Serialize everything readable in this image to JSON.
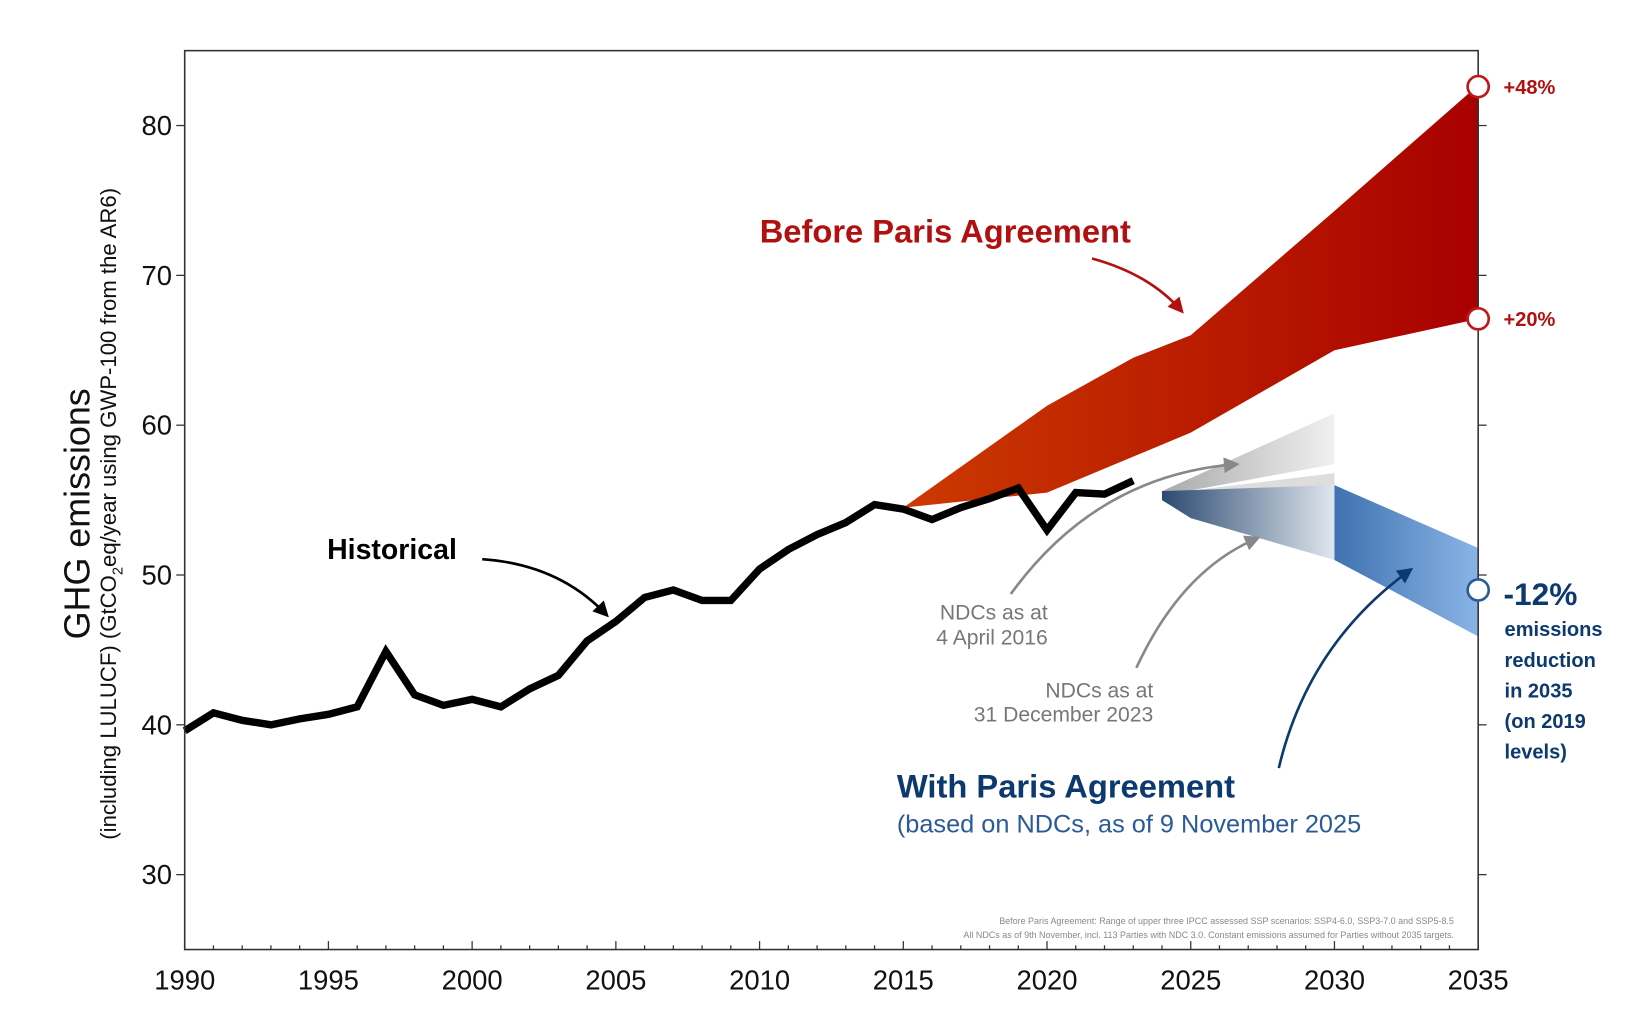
{
  "chart_data": {
    "type": "area",
    "xlabel": "",
    "ylabel": "GHG emissions",
    "ylabel_sub_pre": "(including LULUCF) (GtCO",
    "ylabel_sub_sub": "2",
    "ylabel_sub_post": "eq/year using GWP-100 from the AR6)",
    "xlim": [
      1990,
      2035
    ],
    "ylim": [
      25,
      85
    ],
    "xticks": [
      1990,
      1995,
      2000,
      2005,
      2010,
      2015,
      2020,
      2025,
      2030,
      2035
    ],
    "yticks": [
      30,
      40,
      50,
      60,
      70,
      80
    ],
    "grid": false,
    "colors": {
      "historical": "#000000",
      "before_paris": "#b00000",
      "with_paris": "#4a7ab5",
      "ndc_gray": "#cccccc",
      "blue_text": "#0d3a6e",
      "red_text": "#b01010"
    },
    "series": [
      {
        "name": "Historical",
        "x": [
          1990,
          1991,
          1992,
          1993,
          1994,
          1995,
          1996,
          1997,
          1998,
          1999,
          2000,
          2001,
          2002,
          2003,
          2004,
          2005,
          2006,
          2007,
          2008,
          2009,
          2010,
          2011,
          2012,
          2013,
          2014,
          2015,
          2016,
          2017,
          2018,
          2019,
          2020,
          2021,
          2022,
          2023
        ],
        "y": [
          39.6,
          40.8,
          40.3,
          40.0,
          40.4,
          40.7,
          41.2,
          44.9,
          42.0,
          41.3,
          41.7,
          41.2,
          42.4,
          43.3,
          45.6,
          46.9,
          48.5,
          49.0,
          48.3,
          48.3,
          50.4,
          51.7,
          52.7,
          53.5,
          54.7,
          54.4,
          53.7,
          54.5,
          55.1,
          55.8,
          53.0,
          55.5,
          55.4,
          56.3
        ]
      },
      {
        "name": "Before Paris Agreement",
        "upper": {
          "x": [
            2015,
            2020,
            2023,
            2025,
            2030,
            2035
          ],
          "y": [
            54.5,
            61.3,
            64.5,
            66.0,
            74.3,
            82.7
          ]
        },
        "lower": {
          "x": [
            2015,
            2020,
            2025,
            2030,
            2035
          ],
          "y": [
            54.5,
            55.5,
            59.5,
            65.0,
            67.1
          ]
        }
      },
      {
        "name": "NDCs as at 4 April 2016",
        "upper": {
          "x": [
            2024,
            2030
          ],
          "y": [
            55.6,
            60.8
          ]
        },
        "lower": {
          "x": [
            2024,
            2030
          ],
          "y": [
            55.3,
            57.4
          ]
        }
      },
      {
        "name": "NDCs as at 31 December 2023",
        "upper": {
          "x": [
            2024,
            2030
          ],
          "y": [
            55.4,
            56.8
          ]
        },
        "lower": {
          "x": [
            2024,
            2030
          ],
          "y": [
            55.2,
            56.0
          ]
        }
      },
      {
        "name": "With Paris Agreement",
        "upper": {
          "x": [
            2024,
            2030,
            2035
          ],
          "y": [
            55.6,
            56.0,
            51.8
          ]
        },
        "lower": {
          "x": [
            2024,
            2025,
            2030,
            2035
          ],
          "y": [
            55.0,
            53.8,
            51.0,
            45.9
          ]
        }
      }
    ],
    "markers": [
      {
        "x": 2035,
        "y": 82.6,
        "label": "+48%"
      },
      {
        "x": 2035,
        "y": 67.1,
        "label": "+20%"
      },
      {
        "x": 2035,
        "y": 49.0,
        "label": "-12%"
      }
    ],
    "annotations": {
      "historical": "Historical",
      "before_paris": "Before Paris Agreement",
      "with_paris": "With Paris Agreement",
      "with_paris_sub": "(based on NDCs, as of 9 November 2025",
      "ndc2016_l1": "NDCs as at",
      "ndc2016_l2": "4 April 2016",
      "ndc2023_l1": "NDCs as at",
      "ndc2023_l2": "31 December 2023",
      "reduction": [
        "emissions",
        "reduction",
        "in 2035",
        "(on 2019",
        "levels)"
      ],
      "footnote_1": "Before Paris Agreement: Range of upper three IPCC assessed SSP scenarios: SSP4-6.0, SSP3-7.0 and SSP5-8.5",
      "footnote_2": "All NDCs as of 9th November, incl. 113 Parties with NDC 3.0. Constant emissions assumed for Parties without 2035 targets."
    }
  }
}
